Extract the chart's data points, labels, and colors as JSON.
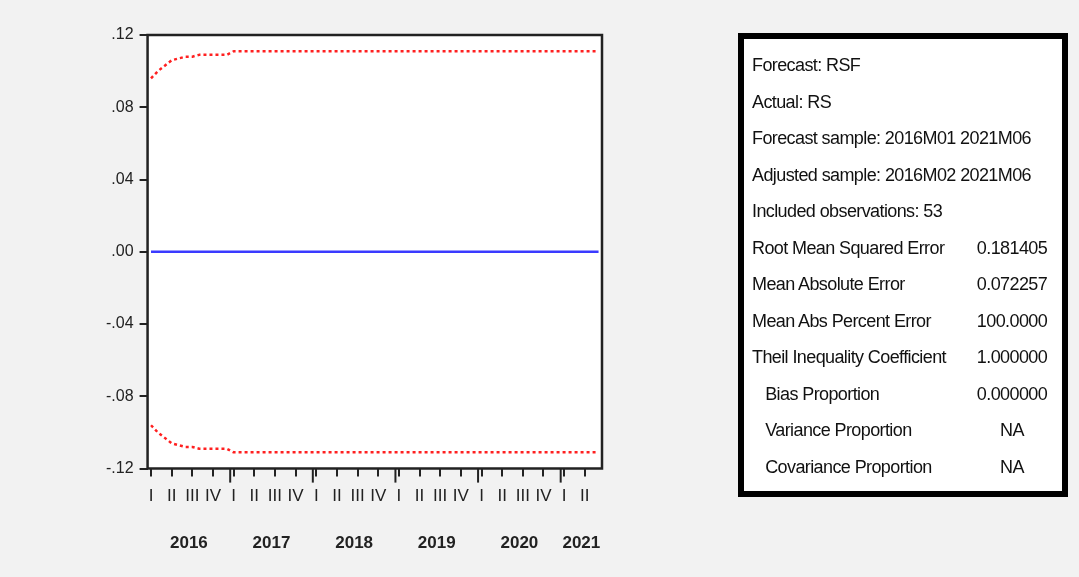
{
  "chart_data": [
    {
      "type": "line",
      "categories": [
        "I",
        null,
        null,
        "II",
        null,
        null,
        "III",
        null,
        null,
        "IV",
        null,
        null,
        "I",
        null,
        null,
        "II",
        null,
        null,
        "III",
        null,
        null,
        "IV",
        null,
        null,
        "I",
        null,
        null,
        "II",
        null,
        null,
        "III",
        null,
        null,
        "IV",
        null,
        null,
        "I",
        null,
        null,
        "II",
        null,
        null,
        "III",
        null,
        null,
        "IV",
        null,
        null,
        "I",
        null,
        null,
        "II",
        null,
        null,
        "III",
        null,
        null,
        "IV",
        null,
        null,
        "I",
        null,
        null,
        "II",
        null,
        null
      ],
      "series": [
        {
          "color": "#ff2020",
          "line_style": "dotted",
          "values": [
            0.096,
            0.1,
            0.103,
            0.106,
            0.107,
            0.108,
            0.108,
            0.109,
            0.109,
            0.109,
            0.109,
            0.109,
            0.111,
            0.111,
            0.111,
            0.111,
            0.111,
            0.111,
            0.111,
            0.111,
            0.111,
            0.111,
            0.111,
            0.111,
            0.111,
            0.111,
            0.111,
            0.111,
            0.111,
            0.111,
            0.111,
            0.111,
            0.111,
            0.111,
            0.111,
            0.111,
            0.111,
            0.111,
            0.111,
            0.111,
            0.111,
            0.111,
            0.111,
            0.111,
            0.111,
            0.111,
            0.111,
            0.111,
            0.111,
            0.111,
            0.111,
            0.111,
            0.111,
            0.111,
            0.111,
            0.111,
            0.111,
            0.111,
            0.111,
            0.111,
            0.111,
            0.111,
            0.111,
            0.111,
            0.111,
            0.111
          ]
        },
        {
          "color": "#3a3aff",
          "line_style": "solid",
          "values": [
            0,
            0,
            0,
            0,
            0,
            0,
            0,
            0,
            0,
            0,
            0,
            0,
            0,
            0,
            0,
            0,
            0,
            0,
            0,
            0,
            0,
            0,
            0,
            0,
            0,
            0,
            0,
            0,
            0,
            0,
            0,
            0,
            0,
            0,
            0,
            0,
            0,
            0,
            0,
            0,
            0,
            0,
            0,
            0,
            0,
            0,
            0,
            0,
            0,
            0,
            0,
            0,
            0,
            0,
            0,
            0,
            0,
            0,
            0,
            0,
            0,
            0,
            0,
            0,
            0,
            0
          ]
        },
        {
          "color": "#ff2020",
          "line_style": "dotted",
          "values": [
            -0.096,
            -0.1,
            -0.103,
            -0.106,
            -0.107,
            -0.108,
            -0.108,
            -0.109,
            -0.109,
            -0.109,
            -0.109,
            -0.109,
            -0.111,
            -0.111,
            -0.111,
            -0.111,
            -0.111,
            -0.111,
            -0.111,
            -0.111,
            -0.111,
            -0.111,
            -0.111,
            -0.111,
            -0.111,
            -0.111,
            -0.111,
            -0.111,
            -0.111,
            -0.111,
            -0.111,
            -0.111,
            -0.111,
            -0.111,
            -0.111,
            -0.111,
            -0.111,
            -0.111,
            -0.111,
            -0.111,
            -0.111,
            -0.111,
            -0.111,
            -0.111,
            -0.111,
            -0.111,
            -0.111,
            -0.111,
            -0.111,
            -0.111,
            -0.111,
            -0.111,
            -0.111,
            -0.111,
            -0.111,
            -0.111,
            -0.111,
            -0.111,
            -0.111,
            -0.111,
            -0.111,
            -0.111,
            -0.111,
            -0.111,
            -0.111,
            -0.111
          ]
        }
      ],
      "ylim": [
        -0.12,
        0.12
      ],
      "yticks": [
        {
          "value": 0.12,
          "label": ".12"
        },
        {
          "value": 0.08,
          "label": ".08"
        },
        {
          "value": 0.04,
          "label": ".04"
        },
        {
          "value": 0,
          "label": ".00"
        },
        {
          "value": -0.04,
          "label": "-.04"
        },
        {
          "value": -0.08,
          "label": "-.08"
        },
        {
          "value": -0.12,
          "label": "-.12"
        }
      ],
      "grid": false,
      "legend": false,
      "marker": "none",
      "annotations": [
        "2016",
        "2017",
        "2018",
        "2019",
        "2020",
        "2021"
      ]
    },
    {
      "type": "other",
      "categories": [
        "Forecast: RSF",
        "Actual: RS",
        "Forecast sample: 2016M01 2021M06",
        "Adjusted sample: 2016M02 2021M06",
        "Included observations: 53",
        "Root Mean Squared Error",
        "Mean Absolute Error",
        "Mean Abs Percent Error",
        "Theil Inequality Coefficient",
        "   Bias Proportion",
        "   Variance Proportion",
        "   Covariance Proportion"
      ],
      "value_labels": [
        null,
        null,
        null,
        null,
        null,
        "0.181405",
        "0.072257",
        "100.0000",
        "1.000000",
        "0.000000",
        "NA",
        "NA"
      ]
    }
  ]
}
